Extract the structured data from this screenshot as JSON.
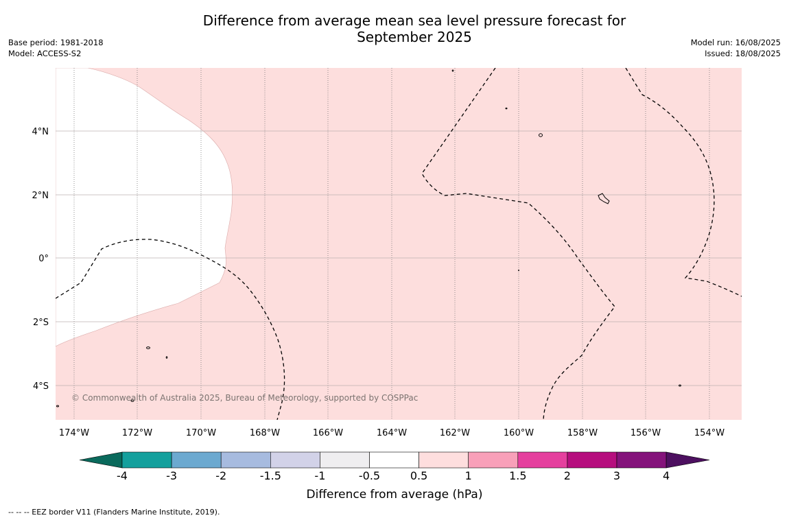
{
  "title_line1": "Difference from average mean sea level pressure forecast for",
  "title_line2": "September 2025",
  "base_period": "Base period: 1981-2018",
  "model": "Model: ACCESS-S2",
  "model_run": "Model run: 16/08/2025",
  "issued": "Issued: 18/08/2025",
  "map": {
    "lon_range": [
      -174.6,
      -153
    ],
    "lat_range": [
      -5.2,
      5.9
    ],
    "lon_ticks": [
      "174°W",
      "172°W",
      "170°W",
      "168°W",
      "166°W",
      "164°W",
      "162°W",
      "160°W",
      "158°W",
      "156°W",
      "154°W"
    ],
    "lat_ticks": [
      "4°N",
      "2°N",
      "0°",
      "2°S",
      "4°S"
    ],
    "background_color": "#fddedd",
    "copyright": "© Commonwealth of Australia 2025, Bureau of Meteorology, supported by COSPPac"
  },
  "colorbar": {
    "title": "Difference from average (hPa)",
    "tick_labels": [
      "-4",
      "-3",
      "-2",
      "-1.5",
      "-1",
      "-0.5",
      "0.5",
      "1",
      "1.5",
      "2",
      "3",
      "4"
    ],
    "colors": [
      "#14a09d",
      "#6ca9d0",
      "#a7bbdf",
      "#d2d2e8",
      "#efeef0",
      "#ffffff",
      "#fedede",
      "#f8a0b9",
      "#e5409e",
      "#b60e7e",
      "#84137b"
    ],
    "extend_min_color": "#0a6a5c",
    "extend_max_color": "#4d1060"
  },
  "footnote": "--  --  -- EEZ border V11 (Flanders Marine Institute, 2019)."
}
